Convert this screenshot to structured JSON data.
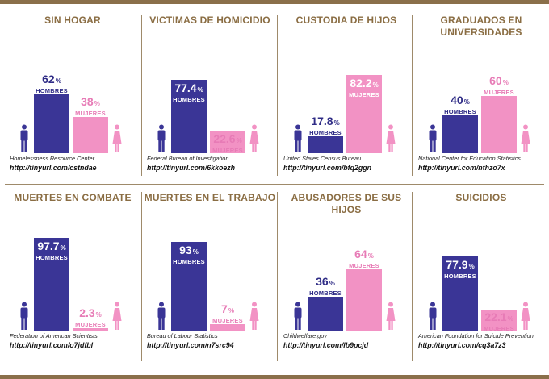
{
  "chart_data": [
    {
      "type": "bar",
      "title": "SIN HOGAR",
      "categories": [
        "HOMBRES",
        "MUJERES"
      ],
      "values": [
        62,
        38
      ],
      "labels": [
        "62",
        "38"
      ],
      "unit": "%",
      "source": "Homelessness Resource Center",
      "url": "http://tinyurl.com/cstndae"
    },
    {
      "type": "bar",
      "title": "VICTIMAS DE HOMICIDIO",
      "categories": [
        "HOMBRES",
        "MUJERES"
      ],
      "values": [
        77.4,
        22.6
      ],
      "labels": [
        "77.4",
        "22.6"
      ],
      "unit": "%",
      "source": "Federal Bureau of Investigation",
      "url": "http://tinyurl.com/6kkoezh"
    },
    {
      "type": "bar",
      "title": "CUSTODIA DE HIJOS",
      "categories": [
        "HOMBRES",
        "MUJERES"
      ],
      "values": [
        17.8,
        82.2
      ],
      "labels": [
        "17.8",
        "82.2"
      ],
      "unit": "%",
      "source": "United States Census Bureau",
      "url": "http://tinyurl.com/bfq2ggn"
    },
    {
      "type": "bar",
      "title": "GRADUADOS EN UNIVERSIDADES",
      "categories": [
        "HOMBRES",
        "MUJERES"
      ],
      "values": [
        40,
        60
      ],
      "labels": [
        "40",
        "60"
      ],
      "unit": "%",
      "source": "National Center for Education Statistics",
      "url": "http://tinyurl.com/nthzo7x"
    },
    {
      "type": "bar",
      "title": "MUERTES EN COMBATE",
      "categories": [
        "HOMBRES",
        "MUJERES"
      ],
      "values": [
        97.7,
        2.3
      ],
      "labels": [
        "97.7",
        "2.3"
      ],
      "unit": "%",
      "source": "Federation of American Scientists",
      "url": "http://tinyurl.com/o7jdfbl"
    },
    {
      "type": "bar",
      "title": "MUERTES EN EL TRABAJO",
      "categories": [
        "HOMBRES",
        "MUJERES"
      ],
      "values": [
        93,
        7
      ],
      "labels": [
        "93",
        "7"
      ],
      "unit": "%",
      "source": "Bureau of Labour Statistics",
      "url": "http://tinyurl.com/n7src94"
    },
    {
      "type": "bar",
      "title": "ABUSADORES DE SUS HIJOS",
      "categories": [
        "HOMBRES",
        "MUJERES"
      ],
      "values": [
        36,
        64
      ],
      "labels": [
        "36",
        "64"
      ],
      "unit": "%",
      "source": "Childwelfare.gov",
      "url": "http://tinyurl.com/lb9pcjd"
    },
    {
      "type": "bar",
      "title": "SUICIDIOS",
      "categories": [
        "HOMBRES",
        "MUJERES"
      ],
      "values": [
        77.9,
        22.1
      ],
      "labels": [
        "77.9",
        "22.1"
      ],
      "unit": "%",
      "source": "American Foundation for Suicide Prevention",
      "url": "http://tinyurl.com/cq3a7z3"
    }
  ],
  "colors": {
    "male": "#3a3596",
    "female": "#f292c4",
    "title": "#8a6d43",
    "rule": "#9e8a6a"
  },
  "icons": {
    "male": "man-silhouette-icon",
    "female": "woman-silhouette-icon"
  }
}
